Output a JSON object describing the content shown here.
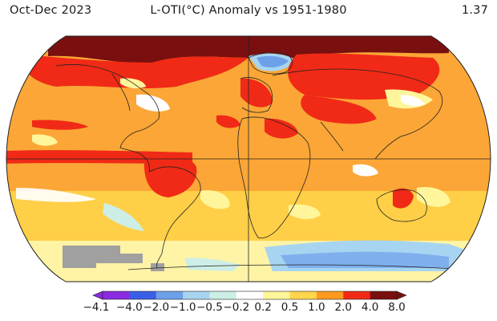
{
  "header": {
    "period": "Oct-Dec 2023",
    "title": "L-OTI(°C) Anomaly vs 1951-1980",
    "global_mean": "1.37"
  },
  "colorbar": {
    "ticks": [
      "−4.1",
      "−4.0",
      "−2.0",
      "−1.0",
      "−0.5",
      "−0.2",
      "0.2",
      "0.5",
      "1.0",
      "2.0",
      "4.0",
      "8.0"
    ],
    "colors": [
      "#8a2be2",
      "#3a5fe6",
      "#6ea0ea",
      "#a7d4f0",
      "#cdeee6",
      "#ffffff",
      "#fff59a",
      "#ffd64a",
      "#ff9a1f",
      "#f02a16",
      "#7a0f0f"
    ]
  },
  "palette": {
    "ocean_base": "#fba636",
    "unavailable": "#a0a0a0"
  }
}
